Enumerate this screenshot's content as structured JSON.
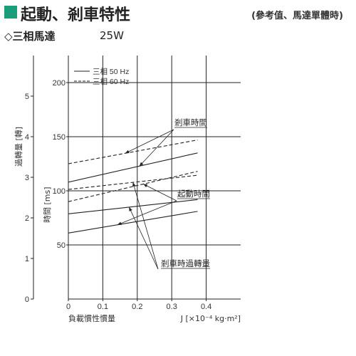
{
  "header": {
    "title": "起動、剎車特性",
    "note": "(參考值、馬達單體時)"
  },
  "subheader": {
    "diamond": "◇",
    "label": "三相馬達",
    "power": "25W"
  },
  "chart_data": {
    "type": "line",
    "xlabel": "負載慣性慣量",
    "xunit": "J [×10⁻⁴ kg·m²]",
    "xlim": [
      0,
      0.5
    ],
    "x_ticks": [
      0,
      0.1,
      0.2,
      0.3,
      0.4
    ],
    "x_tick_labels": [
      "0",
      "0.1",
      "0.2",
      "0.3",
      "0.4"
    ],
    "ylabel_time": "時間 [ms]",
    "ylim_time": [
      0,
      225
    ],
    "y_time_ticks": [
      50,
      100,
      150,
      200
    ],
    "y_time_tick_labels": [
      "50",
      "100",
      "150",
      "200"
    ],
    "ylabel_turns": "過轉量 [轉]",
    "ylim_turns": [
      0,
      6
    ],
    "y_turns_ticks": [
      0,
      1,
      2,
      3,
      4,
      5
    ],
    "y_turns_tick_labels": [
      "0",
      "1",
      "2",
      "3",
      "4",
      "5"
    ],
    "grid": true,
    "legend_position": "top-left",
    "legend": [
      {
        "label": "三相 50 Hz",
        "style": "solid"
      },
      {
        "label": "三相 60 Hz",
        "style": "dashed"
      }
    ],
    "series": [
      {
        "group": "剎車時間",
        "freq": "50 Hz",
        "style": "solid",
        "axis": "time",
        "x": [
          0,
          0.375
        ],
        "y": [
          108,
          135
        ]
      },
      {
        "group": "剎車時間",
        "freq": "60 Hz",
        "style": "dashed",
        "axis": "time",
        "x": [
          0,
          0.375
        ],
        "y": [
          125,
          147
        ]
      },
      {
        "group": "起動時間",
        "freq": "50 Hz",
        "style": "solid",
        "axis": "time",
        "x": [
          0,
          0.375
        ],
        "y": [
          61,
          81
        ]
      },
      {
        "group": "起動時間",
        "freq": "60 Hz",
        "style": "dashed",
        "axis": "time",
        "x": [
          0,
          0.375
        ],
        "y": [
          90,
          118
        ]
      },
      {
        "group": "剎車時過轉量",
        "freq": "50 Hz",
        "style": "solid",
        "axis": "turns",
        "x": [
          0,
          0.375
        ],
        "y": [
          2.1,
          2.45
        ]
      },
      {
        "group": "剎車時過轉量",
        "freq": "60 Hz",
        "style": "dashed",
        "axis": "turns",
        "x": [
          0,
          0.375
        ],
        "y": [
          2.7,
          3.05
        ]
      }
    ],
    "annotations": [
      {
        "text": "剎車時間",
        "targets": [
          "剎車時間"
        ]
      },
      {
        "text": "起動時間",
        "targets": [
          "起動時間"
        ]
      },
      {
        "text": "剎車時過轉量",
        "targets": [
          "剎車時過轉量"
        ]
      }
    ]
  }
}
